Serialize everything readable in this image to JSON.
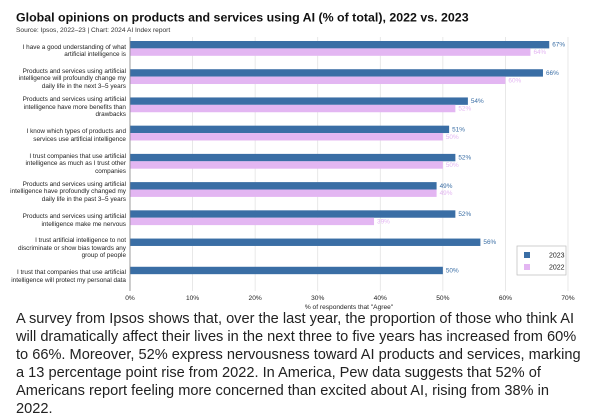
{
  "chart_data": {
    "type": "bar",
    "orientation": "horizontal",
    "title": "Global opinions on products and services using AI (% of total), 2022 vs. 2023",
    "subtitle": "Source: Ipsos, 2022–23 | Chart: 2024 AI Index report",
    "x_label": "% of respondents that \"Agree\"",
    "categories": [
      "I have a good understanding of what artificial intelligence is",
      "Products and services using artificial intelligence will profoundly change my daily life in the next 3–5 years",
      "Products and services using artificial intelligence have more benefits than drawbacks",
      "I know which types of products and services use artificial intelligence",
      "I trust companies that use artificial intelligence as much as I trust other companies",
      "Products and services using artificial intelligence have profoundly changed my daily life in the past 3–5 years",
      "Products and services using artificial intelligence make me nervous",
      "I trust artificial intelligence to not discriminate or show bias towards any group of people",
      "I trust that companies that use artificial intelligence will protect my personal data"
    ],
    "series": [
      {
        "name": "2023",
        "color": "#3a6ea5",
        "values": [
          67,
          66,
          54,
          51,
          52,
          49,
          52,
          56,
          50
        ],
        "value_labels": [
          "67%",
          "66%",
          "54%",
          "51%",
          "52%",
          "49%",
          "52%",
          "56%",
          "50%"
        ]
      },
      {
        "name": "2022",
        "color": "#e3b6f2",
        "values": [
          64,
          60,
          52,
          50,
          50,
          49,
          39,
          null,
          null
        ],
        "value_labels": [
          "64%",
          "60%",
          "52%",
          "50%",
          "50%",
          "49%",
          "39%",
          null,
          null
        ]
      }
    ],
    "xlim": [
      0,
      70
    ],
    "xticks": [
      {
        "value": 0,
        "label": "0%"
      },
      {
        "value": 10,
        "label": "10%"
      },
      {
        "value": 20,
        "label": "20%"
      },
      {
        "value": 30,
        "label": "30%"
      },
      {
        "value": 40,
        "label": "40%"
      },
      {
        "value": 50,
        "label": "50%"
      },
      {
        "value": 60,
        "label": "60%"
      },
      {
        "value": 70,
        "label": "70%"
      }
    ],
    "grid": true,
    "legend": "lower right"
  },
  "paragraph": "A survey from Ipsos shows that, over the last year, the proportion of those who think AI will dramatically affect their lives in the next three to five years has increased from 60% to 66%. Moreover, 52% express nervousness toward AI products and services, marking a 13 percentage point rise from 2022. In America, Pew data suggests that 52% of Americans report feeling more concerned than excited about AI, rising from 38% in 2022."
}
